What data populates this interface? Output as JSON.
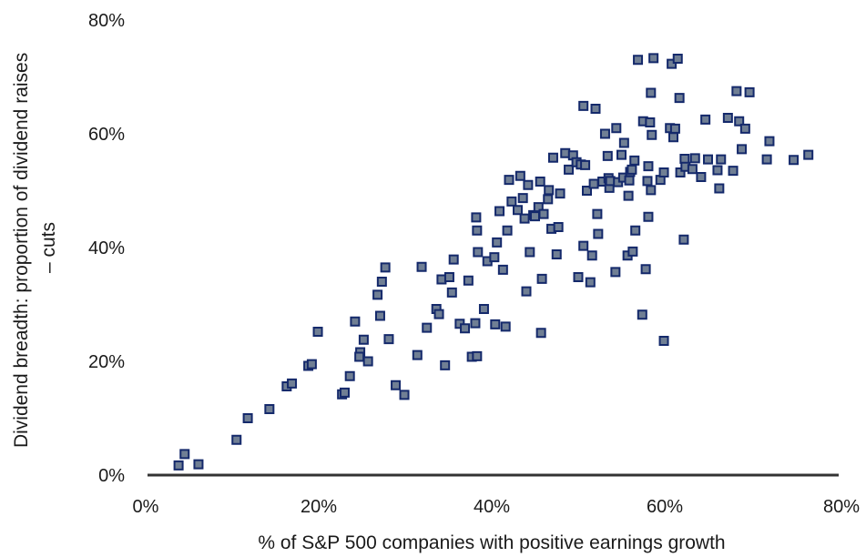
{
  "chart_data": {
    "type": "scatter",
    "xlabel": "% of S&P 500 companies with positive earnings growth",
    "ylabel_lines": [
      "Dividend breadth: proportion of dividend raises",
      "– cuts"
    ],
    "xlim": [
      0,
      80
    ],
    "ylim": [
      0,
      80
    ],
    "x_ticks": [
      0,
      20,
      40,
      60,
      80
    ],
    "y_ticks": [
      0,
      20,
      40,
      60,
      80
    ],
    "x_tick_labels": [
      "0%",
      "20%",
      "40%",
      "60%",
      "80%"
    ],
    "y_tick_labels": [
      "0%",
      "20%",
      "40%",
      "60%",
      "80%"
    ],
    "grid": false,
    "marker": "square",
    "colors": {
      "marker_fill": "#707f94",
      "marker_stroke": "#14296b",
      "axis": "#333333"
    },
    "points": [
      [
        3.8,
        1.7
      ],
      [
        4.5,
        3.7
      ],
      [
        6.1,
        1.9
      ],
      [
        10.5,
        6.2
      ],
      [
        11.8,
        10.0
      ],
      [
        14.3,
        11.6
      ],
      [
        16.3,
        15.6
      ],
      [
        16.9,
        16.1
      ],
      [
        18.8,
        19.2
      ],
      [
        19.2,
        19.5
      ],
      [
        19.9,
        25.2
      ],
      [
        22.7,
        14.2
      ],
      [
        23.0,
        14.5
      ],
      [
        23.6,
        17.4
      ],
      [
        24.2,
        27.0
      ],
      [
        24.8,
        21.6
      ],
      [
        24.7,
        20.8
      ],
      [
        25.2,
        23.8
      ],
      [
        25.7,
        20.0
      ],
      [
        26.8,
        31.7
      ],
      [
        27.1,
        28.0
      ],
      [
        27.3,
        34.0
      ],
      [
        27.7,
        36.5
      ],
      [
        28.1,
        23.9
      ],
      [
        28.9,
        15.8
      ],
      [
        29.9,
        14.1
      ],
      [
        31.4,
        21.1
      ],
      [
        31.9,
        36.6
      ],
      [
        32.5,
        25.9
      ],
      [
        33.6,
        29.2
      ],
      [
        33.9,
        28.3
      ],
      [
        34.2,
        34.4
      ],
      [
        34.6,
        19.3
      ],
      [
        35.1,
        34.8
      ],
      [
        35.4,
        32.1
      ],
      [
        35.6,
        37.9
      ],
      [
        36.3,
        26.6
      ],
      [
        36.9,
        25.8
      ],
      [
        37.3,
        34.2
      ],
      [
        37.7,
        20.8
      ],
      [
        38.1,
        26.7
      ],
      [
        38.2,
        45.3
      ],
      [
        38.3,
        43.0
      ],
      [
        38.3,
        20.9
      ],
      [
        38.4,
        39.2
      ],
      [
        39.1,
        29.2
      ],
      [
        39.5,
        37.6
      ],
      [
        40.3,
        38.3
      ],
      [
        40.4,
        26.5
      ],
      [
        40.6,
        40.9
      ],
      [
        40.9,
        46.4
      ],
      [
        41.3,
        36.1
      ],
      [
        41.6,
        26.1
      ],
      [
        41.8,
        43.0
      ],
      [
        42.0,
        51.9
      ],
      [
        42.3,
        48.1
      ],
      [
        43.0,
        46.6
      ],
      [
        43.3,
        52.6
      ],
      [
        43.6,
        48.7
      ],
      [
        43.8,
        45.1
      ],
      [
        44.0,
        32.3
      ],
      [
        44.2,
        51.0
      ],
      [
        44.4,
        39.2
      ],
      [
        44.8,
        45.7
      ],
      [
        45.0,
        45.5
      ],
      [
        45.4,
        47.1
      ],
      [
        45.6,
        51.6
      ],
      [
        45.7,
        25.0
      ],
      [
        45.8,
        34.5
      ],
      [
        46.0,
        45.9
      ],
      [
        46.5,
        48.5
      ],
      [
        46.6,
        50.1
      ],
      [
        46.9,
        43.3
      ],
      [
        47.1,
        55.8
      ],
      [
        47.5,
        38.8
      ],
      [
        47.7,
        43.6
      ],
      [
        47.9,
        49.5
      ],
      [
        48.5,
        56.6
      ],
      [
        48.9,
        53.7
      ],
      [
        49.4,
        56.2
      ],
      [
        49.8,
        55.0
      ],
      [
        50.0,
        34.8
      ],
      [
        50.3,
        54.6
      ],
      [
        50.6,
        40.3
      ],
      [
        50.6,
        64.9
      ],
      [
        50.8,
        54.5
      ],
      [
        51.0,
        50.0
      ],
      [
        51.4,
        33.9
      ],
      [
        51.6,
        38.6
      ],
      [
        51.8,
        51.2
      ],
      [
        52.0,
        64.4
      ],
      [
        52.2,
        45.9
      ],
      [
        52.3,
        42.4
      ],
      [
        52.8,
        51.6
      ],
      [
        53.1,
        60.0
      ],
      [
        53.4,
        56.1
      ],
      [
        53.5,
        52.2
      ],
      [
        53.6,
        50.5
      ],
      [
        53.7,
        51.7
      ],
      [
        54.3,
        35.7
      ],
      [
        54.4,
        61.0
      ],
      [
        54.6,
        51.5
      ],
      [
        55.0,
        56.3
      ],
      [
        55.2,
        52.3
      ],
      [
        55.3,
        58.4
      ],
      [
        55.7,
        38.6
      ],
      [
        55.8,
        49.1
      ],
      [
        55.9,
        51.8
      ],
      [
        56.0,
        53.3
      ],
      [
        56.2,
        53.7
      ],
      [
        56.3,
        39.3
      ],
      [
        56.5,
        55.3
      ],
      [
        56.6,
        43.0
      ],
      [
        56.9,
        73.0
      ],
      [
        57.4,
        28.2
      ],
      [
        57.5,
        62.2
      ],
      [
        57.8,
        36.2
      ],
      [
        58.0,
        51.7
      ],
      [
        58.1,
        54.3
      ],
      [
        58.1,
        45.4
      ],
      [
        58.3,
        62.0
      ],
      [
        58.4,
        67.2
      ],
      [
        58.4,
        50.1
      ],
      [
        58.5,
        59.8
      ],
      [
        58.7,
        73.3
      ],
      [
        59.5,
        51.9
      ],
      [
        59.9,
        53.2
      ],
      [
        59.9,
        23.6
      ],
      [
        60.6,
        61.0
      ],
      [
        60.8,
        72.3
      ],
      [
        61.0,
        59.4
      ],
      [
        61.2,
        60.9
      ],
      [
        61.5,
        73.2
      ],
      [
        61.7,
        66.3
      ],
      [
        61.8,
        53.2
      ],
      [
        62.2,
        41.4
      ],
      [
        62.3,
        55.6
      ],
      [
        62.4,
        54.2
      ],
      [
        63.2,
        53.8
      ],
      [
        63.5,
        55.7
      ],
      [
        64.2,
        52.4
      ],
      [
        64.7,
        62.5
      ],
      [
        65.0,
        55.5
      ],
      [
        66.1,
        53.6
      ],
      [
        66.3,
        50.4
      ],
      [
        66.5,
        55.5
      ],
      [
        67.3,
        62.8
      ],
      [
        67.9,
        53.5
      ],
      [
        68.3,
        67.5
      ],
      [
        68.6,
        62.2
      ],
      [
        68.9,
        57.3
      ],
      [
        69.3,
        60.9
      ],
      [
        69.8,
        67.3
      ],
      [
        71.8,
        55.5
      ],
      [
        72.1,
        58.7
      ],
      [
        74.9,
        55.4
      ],
      [
        76.6,
        56.3
      ]
    ]
  }
}
